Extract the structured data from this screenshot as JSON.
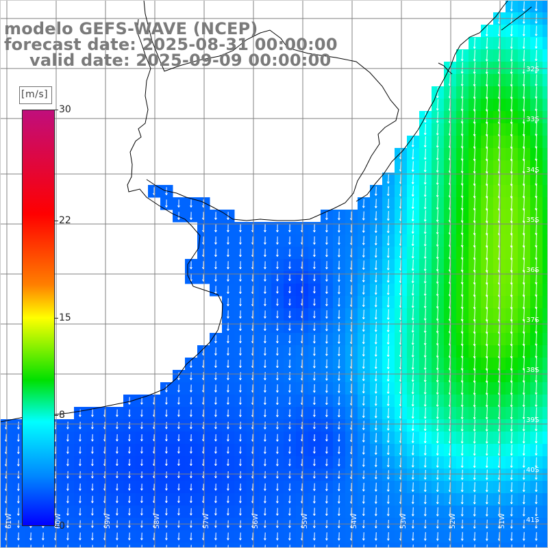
{
  "title": {
    "line1": "modelo GEFS-WAVE (NCEP)",
    "line2": "forecast date: 2025-08-31 00:00:00",
    "line3": "valid date: 2025-09-09 00:00:00"
  },
  "colorbar": {
    "unit": "[m/s]",
    "min": 0,
    "max": 30,
    "ticks": [
      "30",
      "22",
      "15",
      "8",
      "0"
    ],
    "tick_values": [
      30,
      22,
      15,
      8,
      0
    ],
    "colors": [
      "#0000ff",
      "#0088ff",
      "#00ffff",
      "#00e000",
      "#ffff00",
      "#ff7f00",
      "#ff0000",
      "#c00e7c"
    ]
  },
  "map": {
    "lat_labels": [
      "32S",
      "33S",
      "34S",
      "35S",
      "36S",
      "37S",
      "38S",
      "39S",
      "40S",
      "41S"
    ],
    "lon_labels": [
      "61W",
      "60W",
      "59W",
      "58W",
      "57W",
      "56W",
      "55W",
      "54W",
      "53W",
      "52W",
      "51W"
    ],
    "land_color": "#ffffff",
    "grid_color": "#808080",
    "coast_color": "#000000",
    "arrow_color": "#ffffff"
  }
}
